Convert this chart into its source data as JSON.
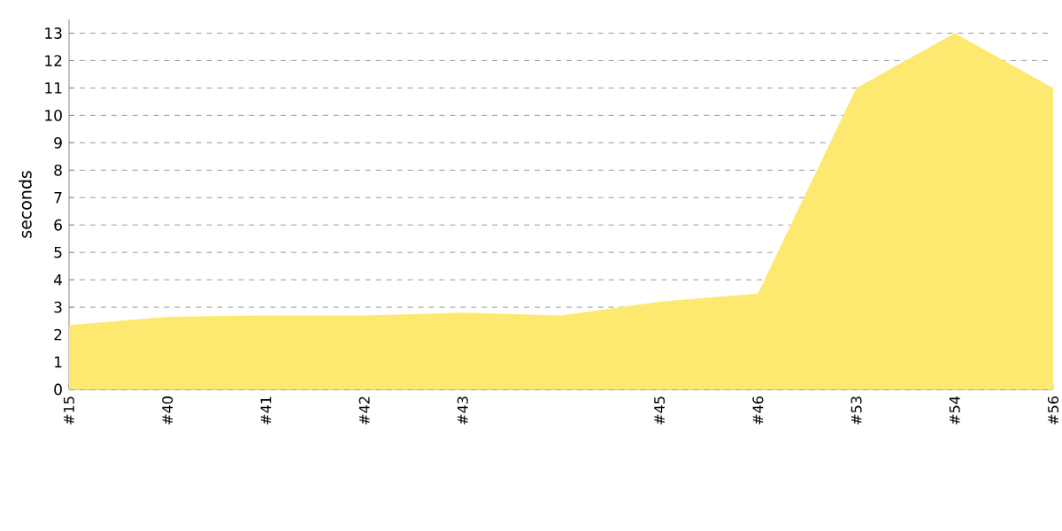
{
  "chart_data": {
    "type": "area",
    "ylabel": "seconds",
    "categories": [
      "#15",
      "#40",
      "#41",
      "#42",
      "#43",
      null,
      "#45",
      "#46",
      "#53",
      "#54",
      "#56"
    ],
    "values": [
      2.35,
      2.65,
      2.7,
      2.7,
      2.8,
      2.7,
      3.2,
      3.5,
      11.0,
      13.0,
      11.0
    ],
    "color": "#fde96f",
    "ylim": [
      0,
      13.5
    ],
    "yticks": [
      0,
      1,
      2,
      3,
      4,
      5,
      6,
      7,
      8,
      9,
      10,
      11,
      12,
      13
    ],
    "grid": "y"
  }
}
